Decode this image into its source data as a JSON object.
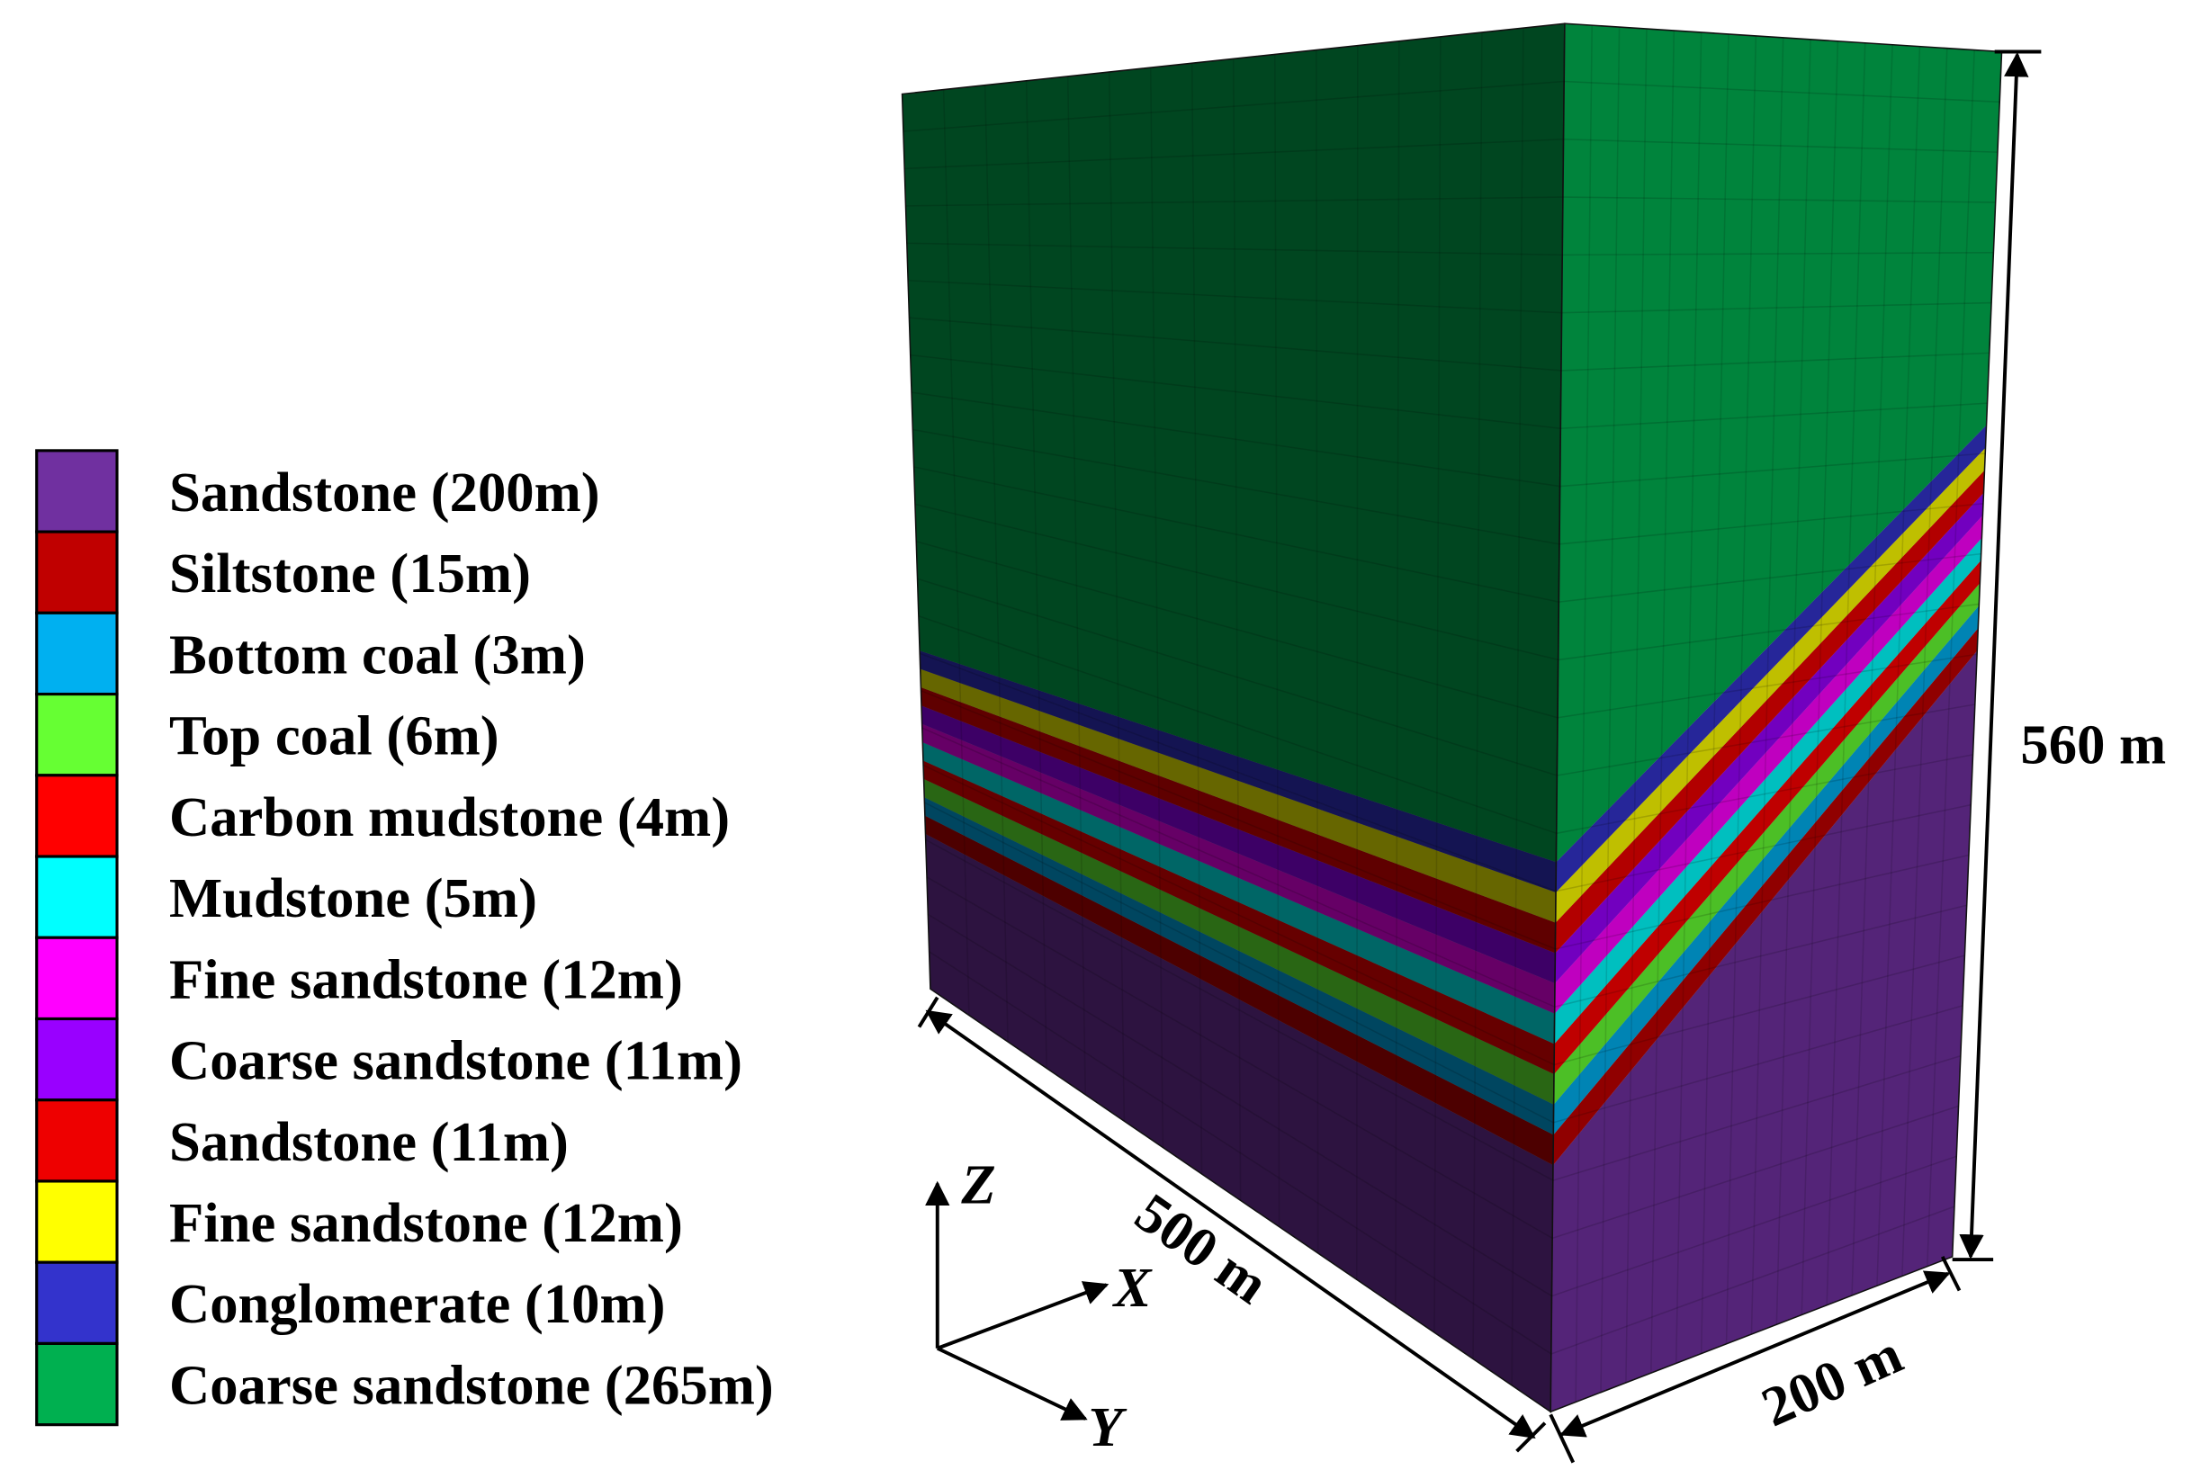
{
  "legend": [
    {
      "label": "Sandstone (200m)",
      "color": "#7030a0"
    },
    {
      "label": "Siltstone (15m)",
      "color": "#c00000"
    },
    {
      "label": "Bottom coal (3m)",
      "color": "#00b0f0"
    },
    {
      "label": "Top coal (6m)",
      "color": "#66ff33"
    },
    {
      "label": "Carbon mudstone (4m)",
      "color": "#ff0000"
    },
    {
      "label": "Mudstone (5m)",
      "color": "#00ffff"
    },
    {
      "label": "Fine sandstone (12m)",
      "color": "#ff00ff"
    },
    {
      "label": "Coarse sandstone (11m)",
      "color": "#9900ff"
    },
    {
      "label": "Sandstone (11m)",
      "color": "#ee0000"
    },
    {
      "label": "Fine sandstone (12m)",
      "color": "#ffff00"
    },
    {
      "label": "Conglomerate (10m)",
      "color": "#3333cc"
    },
    {
      "label": "Coarse sandstone (265m)",
      "color": "#00b050"
    }
  ],
  "dimensions": {
    "length": "500 m",
    "width": "200 m",
    "height": "560 m"
  },
  "axes": {
    "x": "X",
    "y": "Y",
    "z": "Z"
  }
}
